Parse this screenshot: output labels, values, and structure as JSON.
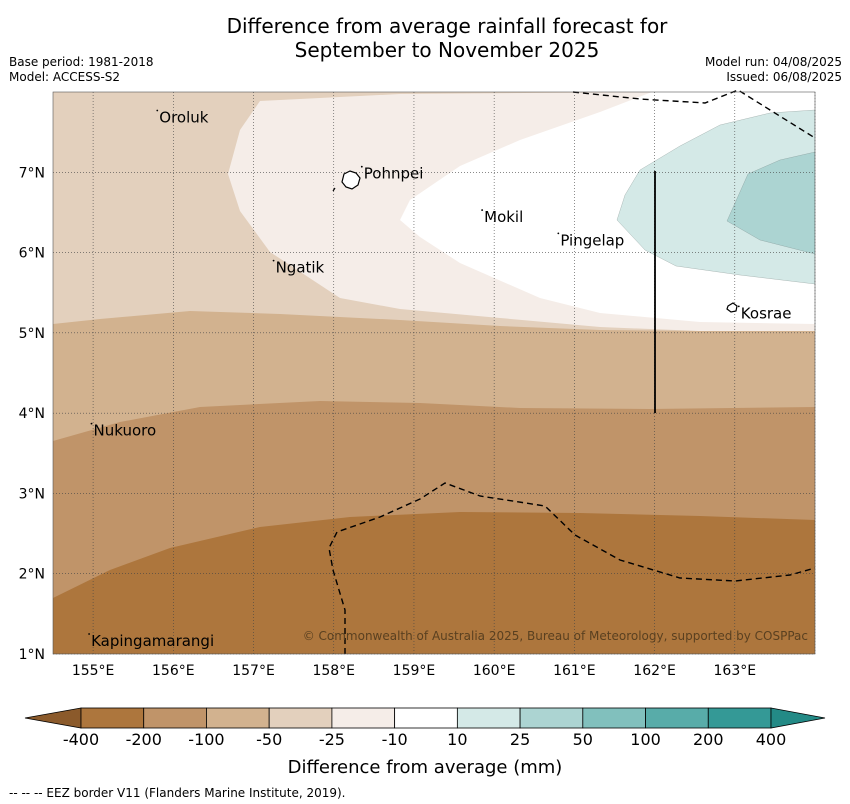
{
  "title_line1": "Difference from average rainfall forecast for",
  "title_line2": "September to November 2025",
  "meta_left": [
    "Base period: 1981-2018",
    "Model: ACCESS-S2"
  ],
  "meta_right": [
    "Model run: 04/08/2025",
    "Issued: 06/08/2025"
  ],
  "copyright": "© Commonwealth of Australia 2025, Bureau of Meteorology, supported by COSPPac",
  "places": [
    {
      "name": "Oroluk",
      "lon": 155.8,
      "lat": 7.62
    },
    {
      "name": "Pohnpei",
      "lon": 158.35,
      "lat": 6.92
    },
    {
      "name": "Mokil",
      "lon": 159.85,
      "lat": 6.38
    },
    {
      "name": "Pingelap",
      "lon": 160.8,
      "lat": 6.09
    },
    {
      "name": "Ngatik",
      "lon": 157.25,
      "lat": 5.75
    },
    {
      "name": "Kosrae",
      "lon": 163.05,
      "lat": 5.18
    },
    {
      "name": "Nukuoro",
      "lon": 154.98,
      "lat": 3.72
    },
    {
      "name": "Kapingamarangi",
      "lon": 154.95,
      "lat": 1.1
    }
  ],
  "x_ticks": [
    "155°E",
    "156°E",
    "157°E",
    "158°E",
    "159°E",
    "160°E",
    "161°E",
    "162°E",
    "163°E"
  ],
  "y_ticks": [
    "1°N",
    "2°N",
    "3°N",
    "4°N",
    "5°N",
    "6°N",
    "7°N"
  ],
  "colorbar": {
    "labels": [
      "-400",
      "-200",
      "-100",
      "-50",
      "-25",
      "-10",
      "10",
      "25",
      "50",
      "100",
      "200",
      "400"
    ],
    "colors": [
      "#8b5a2b",
      "#ad763d",
      "#c09469",
      "#d2b28f",
      "#e3d0bd",
      "#f5ede8",
      "#ffffff",
      "#d4e9e7",
      "#acd4d2",
      "#81c0bd",
      "#58aca9",
      "#349996",
      "#238a86"
    ],
    "title": "Difference from average (mm)"
  },
  "legend_note": "--  --  -- EEZ border V11 (Flanders Marine Institute, 2019)."
}
